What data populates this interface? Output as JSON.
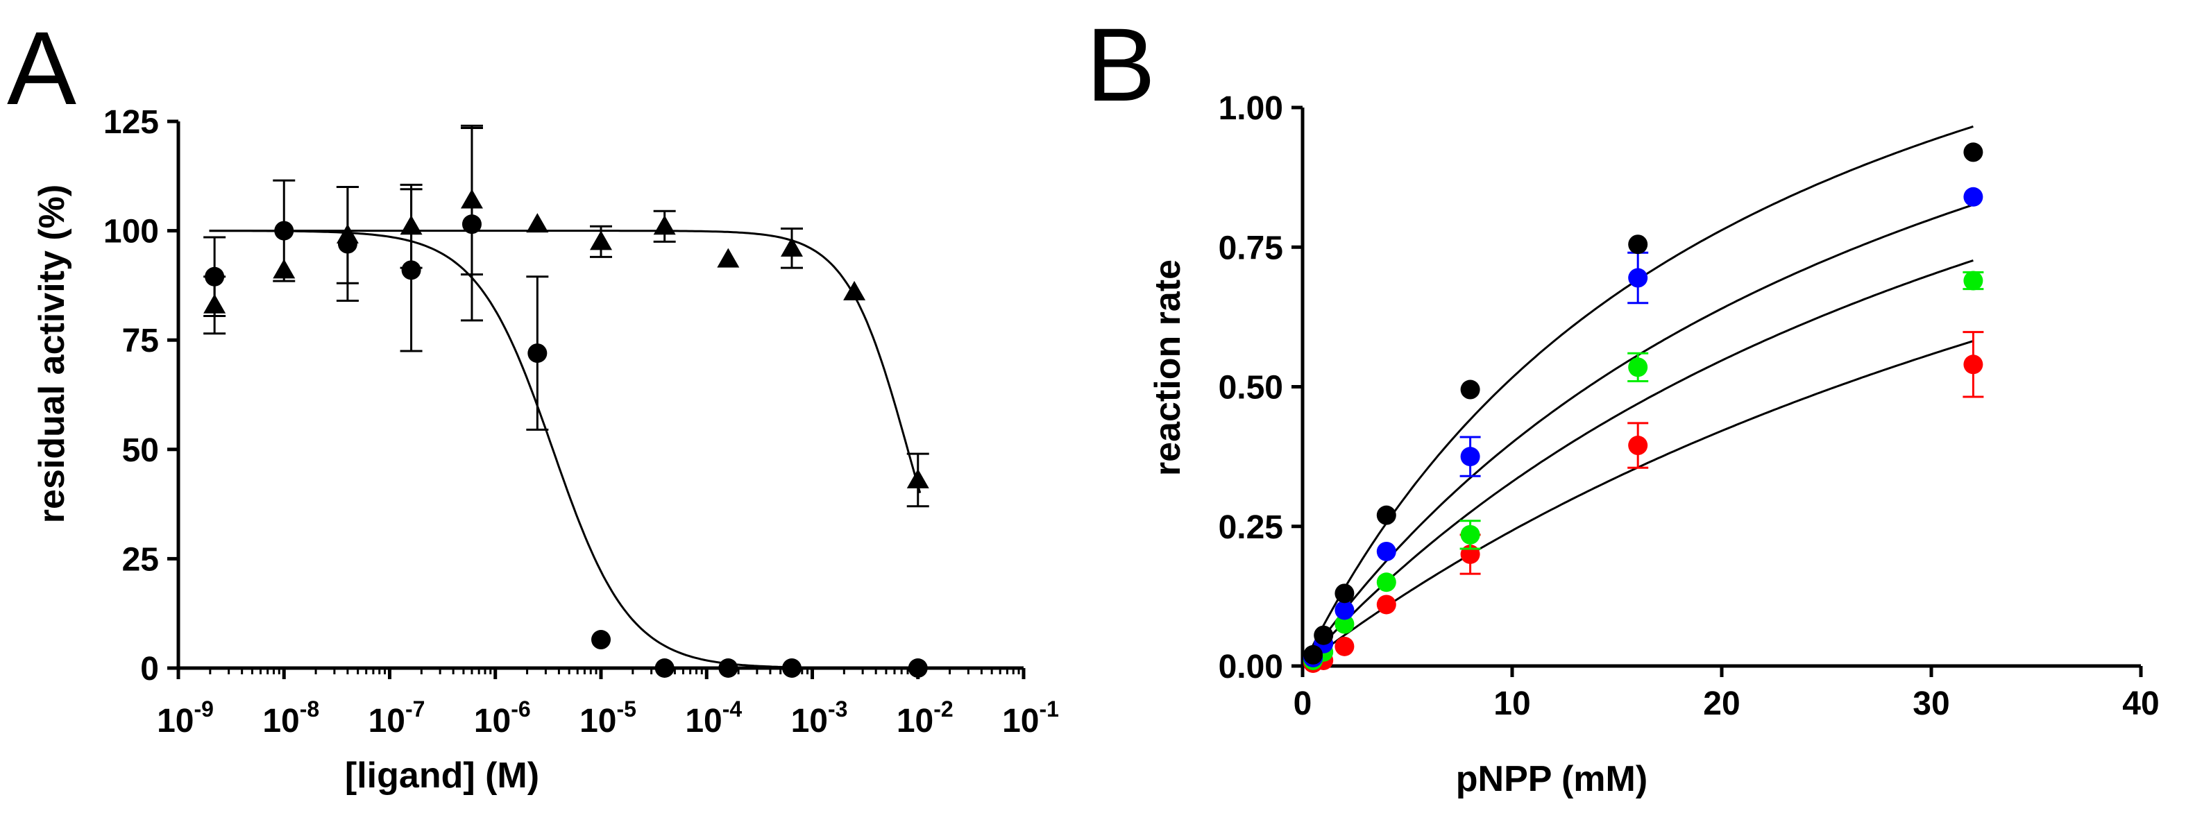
{
  "chart_data": [
    {
      "panel_label": "A",
      "type": "scatter",
      "xscale": "log",
      "xlabel": "[ligand] (M)",
      "ylabel": "residual activity (%)",
      "xlim": [
        1e-09,
        0.1
      ],
      "ylim": [
        0,
        125
      ],
      "yticks": [
        0,
        25,
        50,
        75,
        100,
        125
      ],
      "xticks": [
        {
          "base": "10",
          "exp": "-9"
        },
        {
          "base": "10",
          "exp": "-8"
        },
        {
          "base": "10",
          "exp": "-7"
        },
        {
          "base": "10",
          "exp": "-6"
        },
        {
          "base": "10",
          "exp": "-5"
        },
        {
          "base": "10",
          "exp": "-4"
        },
        {
          "base": "10",
          "exp": "-3"
        },
        {
          "base": "10",
          "exp": "-2"
        },
        {
          "base": "10",
          "exp": "-1"
        }
      ],
      "series": [
        {
          "name": "circles",
          "marker": "circle",
          "color": "#000000",
          "points": [
            {
              "x": 2.2e-09,
              "y": 89.5,
              "err": 9
            },
            {
              "x": 1e-08,
              "y": 100,
              "err": 11.5
            },
            {
              "x": 4e-08,
              "y": 97,
              "err": 13
            },
            {
              "x": 1.6e-07,
              "y": 91,
              "err": 18.5
            },
            {
              "x": 6e-07,
              "y": 101.5,
              "err": 22
            },
            {
              "x": 2.5e-06,
              "y": 72,
              "err": 17.5
            },
            {
              "x": 1e-05,
              "y": 6.5,
              "err": 0
            },
            {
              "x": 4e-05,
              "y": 0,
              "err": 0
            },
            {
              "x": 0.00016,
              "y": 0,
              "err": 0
            },
            {
              "x": 0.00064,
              "y": 0,
              "err": 0
            },
            {
              "x": 0.01,
              "y": 0,
              "err": 0
            }
          ],
          "fit": {
            "top": 100,
            "bottom": 0,
            "ic50": 3.5e-06,
            "hill": 1.2
          }
        },
        {
          "name": "triangles",
          "marker": "triangle",
          "color": "#000000",
          "points": [
            {
              "x": 2.2e-09,
              "y": 83,
              "err": 6.5
            },
            {
              "x": 1e-08,
              "y": 91,
              "err": 0
            },
            {
              "x": 4e-08,
              "y": 99,
              "err": 11
            },
            {
              "x": 1.6e-07,
              "y": 101,
              "err": 9.5
            },
            {
              "x": 6e-07,
              "y": 107,
              "err": 17
            },
            {
              "x": 2.5e-06,
              "y": 101.5,
              "err": 0
            },
            {
              "x": 1e-05,
              "y": 97.5,
              "err": 3.5
            },
            {
              "x": 4e-05,
              "y": 101,
              "err": 3.5
            },
            {
              "x": 0.00016,
              "y": 93.5,
              "err": 0
            },
            {
              "x": 0.00064,
              "y": 96,
              "err": 4.5
            },
            {
              "x": 0.0025,
              "y": 86,
              "err": 0
            },
            {
              "x": 0.01,
              "y": 43,
              "err": 6
            }
          ],
          "fit": {
            "top": 100,
            "bottom": 0,
            "ic50": 0.008,
            "hill": 1.5
          }
        }
      ]
    },
    {
      "panel_label": "B",
      "type": "scatter",
      "xscale": "linear",
      "xlabel": "pNPP (mM)",
      "ylabel": "reaction rate",
      "xlim": [
        0,
        40
      ],
      "ylim": [
        0,
        1
      ],
      "xticks": [
        "0",
        "10",
        "20",
        "30",
        "40"
      ],
      "yticks": [
        "0.00",
        "0.25",
        "0.50",
        "0.75",
        "1.00"
      ],
      "x": [
        0.5,
        1,
        2,
        4,
        8,
        16,
        32
      ],
      "series": [
        {
          "name": "black",
          "color": "#000000",
          "values": [
            0.02,
            0.055,
            0.13,
            0.27,
            0.495,
            0.755,
            0.92
          ],
          "errors": [
            0,
            0,
            0,
            0,
            0,
            0,
            0
          ],
          "fit": {
            "vmax": 1.6,
            "km": 21
          }
        },
        {
          "name": "blue",
          "color": "#0000ff",
          "values": [
            0.015,
            0.04,
            0.1,
            0.205,
            0.375,
            0.695,
            0.84
          ],
          "errors": [
            0,
            0,
            0,
            0,
            0.035,
            0.045,
            0
          ],
          "fit": {
            "vmax": 1.6,
            "km": 30
          }
        },
        {
          "name": "green",
          "color": "#00ee00",
          "values": [
            0.01,
            0.025,
            0.075,
            0.15,
            0.235,
            0.535,
            0.69
          ],
          "errors": [
            0,
            0,
            0,
            0,
            0.025,
            0.025,
            0.015
          ],
          "fit": {
            "vmax": 1.6,
            "km": 38.5
          }
        },
        {
          "name": "red",
          "color": "#ff0000",
          "values": [
            0.005,
            0.01,
            0.035,
            0.11,
            0.2,
            0.395,
            0.54
          ],
          "errors": [
            0,
            0,
            0,
            0,
            0.035,
            0.04,
            0.058
          ],
          "fit": {
            "vmax": 1.6,
            "km": 56
          }
        }
      ]
    }
  ]
}
